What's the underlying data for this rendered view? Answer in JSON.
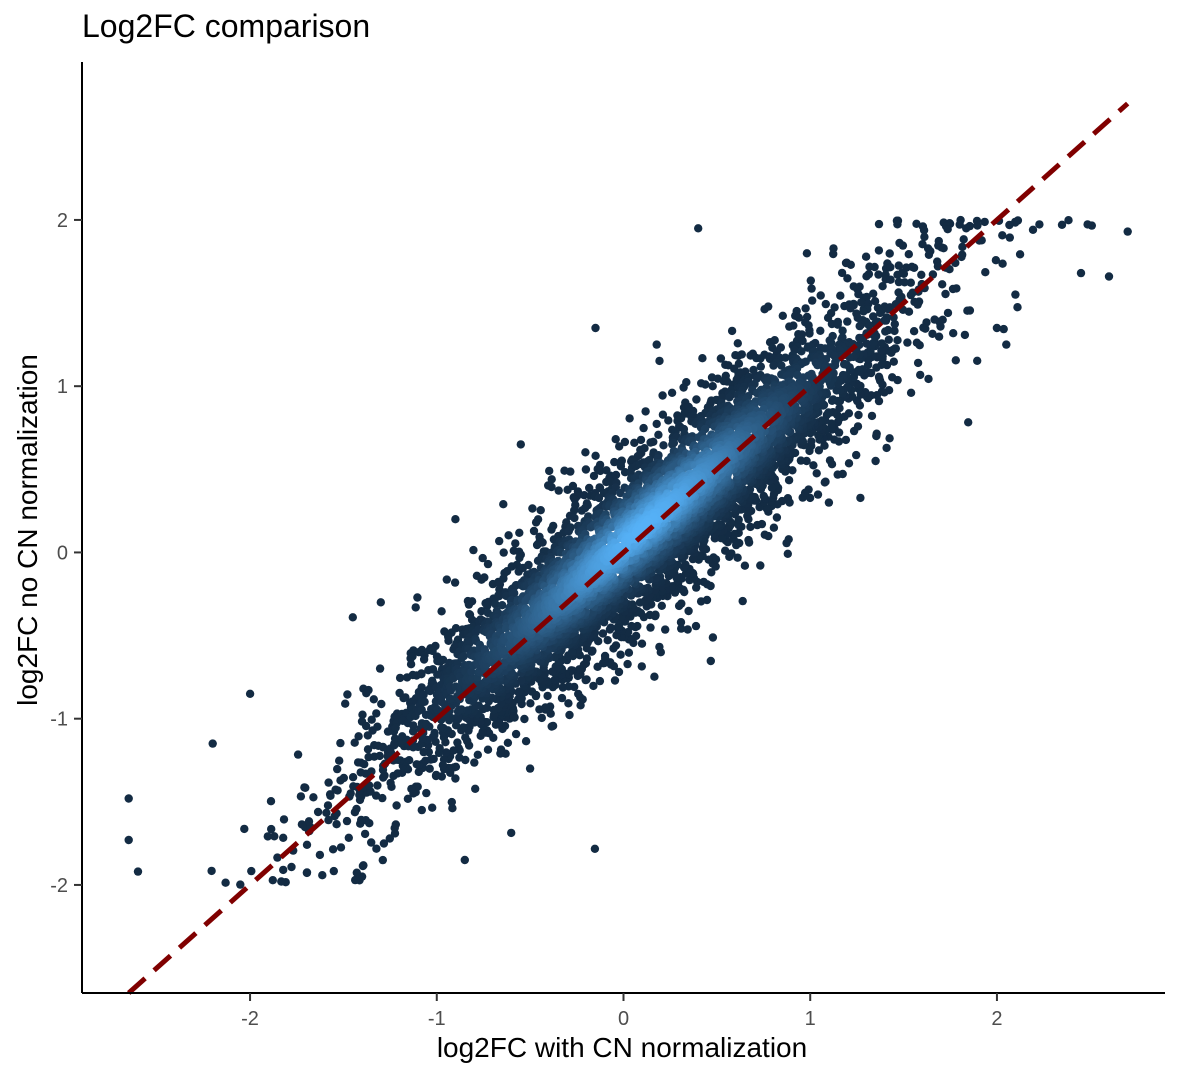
{
  "chart_data": {
    "type": "scatter",
    "title": "Log2FC comparison",
    "xlabel": "log2FC with CN normalization",
    "ylabel": "log2FC no CN normalization",
    "xlim": [
      -2.9,
      2.9
    ],
    "ylim": [
      -2.65,
      2.95
    ],
    "x_ticks": [
      -2,
      -1,
      0,
      1,
      2
    ],
    "y_ticks": [
      -2,
      -1,
      0,
      1,
      2
    ],
    "x_tick_labels": [
      "-2",
      "-1",
      "0",
      "1",
      "2"
    ],
    "y_tick_labels": [
      "-2",
      "-1",
      "0",
      "1",
      "2"
    ],
    "grid": false,
    "legend": "none",
    "point_color_scale": [
      "#132B43",
      "#56B1F7"
    ],
    "point_color_meaning": "point density",
    "reference_line": {
      "slope": 1,
      "intercept": 0,
      "style": "dashed",
      "color": "#800000",
      "from": -2.65,
      "to": 2.7
    },
    "point_distribution": {
      "relation": "y ≈ x",
      "x_range": [
        -2.65,
        2.7
      ],
      "y_range": [
        -2.0,
        2.0
      ],
      "dense_center": [
        0.1,
        0.15
      ]
    },
    "outliers": [
      {
        "x": -2.65,
        "y": -1.48
      },
      {
        "x": -2.65,
        "y": -1.73
      },
      {
        "x": -2.6,
        "y": -1.92
      },
      {
        "x": -2.0,
        "y": -0.85
      },
      {
        "x": -2.2,
        "y": -1.15
      },
      {
        "x": -1.45,
        "y": -0.39
      },
      {
        "x": -1.3,
        "y": -0.3
      },
      {
        "x": -0.9,
        "y": 0.2
      },
      {
        "x": -0.55,
        "y": 0.65
      },
      {
        "x": -0.15,
        "y": 1.35
      },
      {
        "x": 0.4,
        "y": 1.95
      },
      {
        "x": 2.7,
        "y": 1.93
      },
      {
        "x": 2.6,
        "y": 1.66
      },
      {
        "x": 2.45,
        "y": 1.68
      },
      {
        "x": 2.05,
        "y": 1.25
      },
      {
        "x": 2.0,
        "y": 1.35
      },
      {
        "x": 1.35,
        "y": 0.55
      },
      {
        "x": 1.1,
        "y": 0.3
      },
      {
        "x": 0.65,
        "y": -0.08
      },
      {
        "x": 0.2,
        "y": -0.6
      },
      {
        "x": -0.5,
        "y": -1.3
      },
      {
        "x": -0.85,
        "y": -1.85
      },
      {
        "x": -1.4,
        "y": -1.95
      },
      {
        "x": -1.08,
        "y": -1.55
      }
    ]
  }
}
